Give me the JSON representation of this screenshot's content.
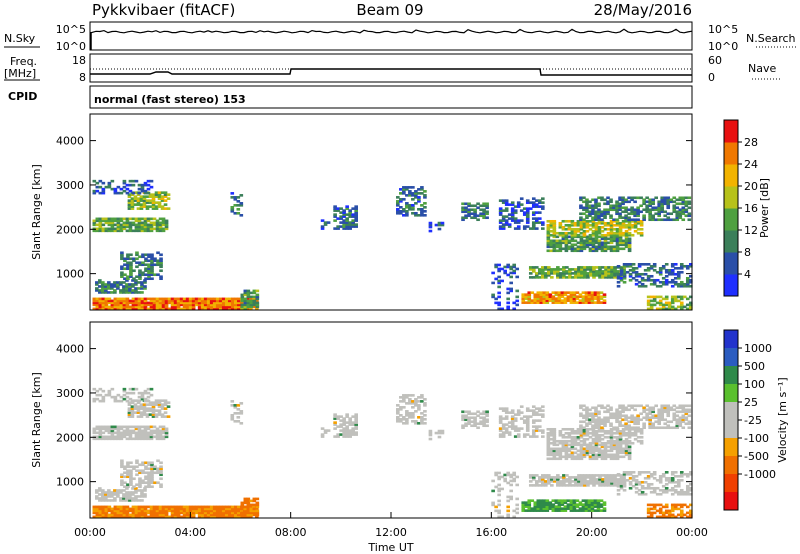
{
  "header": {
    "radar": "Pykkvibaer (fitACF)",
    "beam": "Beam 09",
    "date": "28/May/2016"
  },
  "noise_panel": {
    "left_label": "N.Sky",
    "right_label": "N.Search",
    "yticks": [
      "10^5",
      "10^0"
    ]
  },
  "freq_panel": {
    "left_label_1": "Freq.",
    "left_label_2": "[MHz]",
    "right_label": "Nave",
    "left_ticks": [
      "18",
      "8"
    ],
    "right_ticks": [
      "60",
      "0"
    ]
  },
  "cpid": {
    "label": "CPID",
    "mode": "normal (fast stereo) 153"
  },
  "colors": {
    "power_scale": [
      "#1f2fff",
      "#2a4fa8",
      "#3b7f5a",
      "#4fa040",
      "#b7c21a",
      "#f2b300",
      "#f07800",
      "#e81010"
    ],
    "velocity_scale": [
      "#2233cc",
      "#2b5cc0",
      "#2f8a4a",
      "#5ac02e",
      "#c0c0bc",
      "#c0c0bc",
      "#f5a000",
      "#f07000",
      "#f04000",
      "#e81010"
    ]
  },
  "chart_data": [
    {
      "type": "heatmap",
      "name": "power",
      "ylabel": "Slant Range [km]",
      "ylim": [
        180,
        4600
      ],
      "yticks": [
        "1000",
        "2000",
        "3000",
        "4000"
      ],
      "xlim": [
        0,
        24
      ],
      "colorbar_label": "Power [dB]",
      "colorbar_ticks": [
        "4",
        "8",
        "12",
        "16",
        "20",
        "24",
        "28"
      ],
      "colorbar_range": [
        0,
        32
      ]
    },
    {
      "type": "heatmap",
      "name": "velocity",
      "ylabel": "Slant Range [km]",
      "ylim": [
        180,
        4600
      ],
      "yticks": [
        "1000",
        "2000",
        "3000",
        "4000"
      ],
      "xlim": [
        0,
        24
      ],
      "xticks": [
        "00:00",
        "04:00",
        "08:00",
        "12:00",
        "16:00",
        "20:00",
        "00:00"
      ],
      "xlabel": "Time UT",
      "colorbar_label": "Velocity [m s⁻¹]",
      "colorbar_ticks": [
        "1000",
        "500",
        "100",
        "25",
        "-25",
        "-100",
        "-500",
        "-1000"
      ]
    }
  ]
}
